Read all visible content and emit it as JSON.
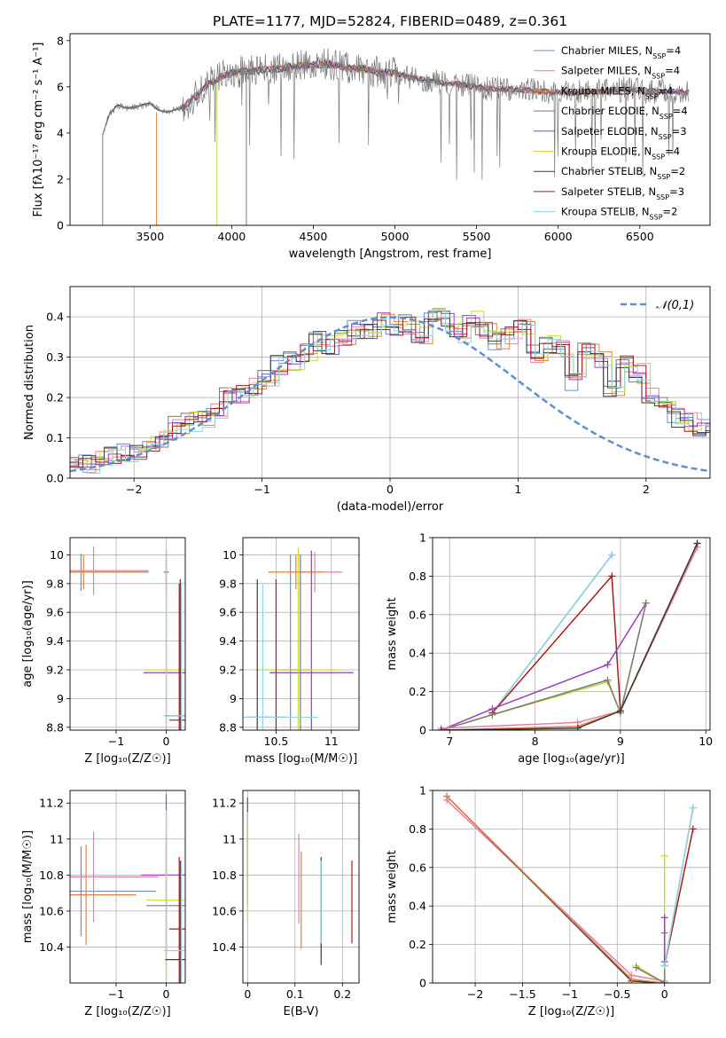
{
  "figure": {
    "title": "PLATE=1177, MJD=52824, FIBERID=0489, z=0.361"
  },
  "colors": {
    "chabrier_miles": "#6b8ed6",
    "salpeter_miles": "#e57fae",
    "kroupa_miles": "#e8803a",
    "chabrier_elodie": "#7a7a7a",
    "salpeter_elodie": "#9b3fb8",
    "kroupa_elodie": "#c8dc3a",
    "chabrier_stelib": "#3c3c3c",
    "salpeter_stelib": "#b01818",
    "kroupa_stelib": "#8fd3de",
    "normal": "#5b8fd6"
  },
  "chart_data": [
    {
      "id": "spectrum",
      "type": "line",
      "xlabel": "wavelength [Angstrom, rest frame]",
      "ylabel": "Flux [fλ10⁻¹⁷ erg cm⁻² s⁻¹ A⁻¹]",
      "xlim": [
        3010,
        6930
      ],
      "ylim": [
        0,
        8.3
      ],
      "xticks": [
        3500,
        4000,
        4500,
        5000,
        5500,
        6000,
        6500
      ],
      "yticks": [
        0,
        2,
        4,
        6,
        8
      ],
      "grid": false,
      "legend_position": "right",
      "series": [
        {
          "name": "Chabrier MILES, N_SSP=4",
          "sub_label": "SSP",
          "val": "4",
          "color_key": "chabrier_miles"
        },
        {
          "name": "Salpeter MILES, N_SSP=4",
          "sub_label": "SSP",
          "val": "4",
          "color_key": "salpeter_miles"
        },
        {
          "name": "Kroupa MILES, N_SSP=4",
          "sub_label": "SSP",
          "val": "4",
          "color_key": "kroupa_miles"
        },
        {
          "name": "Chabrier ELODIE, N_SSP=4",
          "sub_label": "SSP",
          "val": "4",
          "color_key": "chabrier_elodie"
        },
        {
          "name": "Salpeter ELODIE, N_SSP=3",
          "sub_label": "SSP",
          "val": "3",
          "color_key": "salpeter_elodie"
        },
        {
          "name": "Kroupa ELODIE, N_SSP=4",
          "sub_label": "SSP",
          "val": "4",
          "color_key": "kroupa_elodie"
        },
        {
          "name": "Chabrier STELIB, N_SSP=2",
          "sub_label": "SSP",
          "val": "2",
          "color_key": "chabrier_stelib"
        },
        {
          "name": "Salpeter STELIB, N_SSP=3",
          "sub_label": "SSP",
          "val": "3",
          "color_key": "salpeter_stelib"
        },
        {
          "name": "Kroupa STELIB, N_SSP=2",
          "sub_label": "SSP",
          "val": "2",
          "color_key": "kroupa_stelib"
        }
      ],
      "continuum": {
        "x": [
          3210,
          3250,
          3300,
          3350,
          3400,
          3450,
          3500,
          3550,
          3600,
          3650,
          3700,
          3750,
          3800,
          3850,
          3900,
          3950,
          4000,
          4100,
          4200,
          4300,
          4400,
          4500,
          4600,
          4700,
          4800,
          4900,
          5000,
          5100,
          5200,
          5300,
          5400,
          5500,
          5600,
          5700,
          5800,
          5900,
          6000,
          6100,
          6200,
          6300,
          6400,
          6500,
          6600,
          6700,
          6800
        ],
        "y": [
          3.9,
          4.8,
          5.2,
          5.1,
          5.1,
          5.2,
          5.3,
          5.0,
          4.9,
          5.0,
          5.1,
          5.4,
          5.7,
          6.1,
          6.3,
          6.5,
          6.6,
          6.7,
          6.75,
          6.8,
          6.9,
          6.95,
          7.0,
          6.8,
          6.8,
          6.6,
          6.6,
          6.4,
          6.3,
          6.15,
          6.1,
          6.0,
          5.9,
          5.9,
          5.85,
          5.8,
          5.75,
          5.75,
          5.8,
          5.8,
          5.9,
          5.85,
          5.8,
          5.8,
          5.75
        ]
      },
      "data_cutoffs": [
        {
          "x": 3210,
          "y_from": 0,
          "y_to": 3.9,
          "color_key": "chabrier_elodie"
        },
        {
          "x": 3540,
          "y_from": 0,
          "y_to": 4.9,
          "color_key": "kroupa_miles"
        },
        {
          "x": 3910,
          "y_from": 0,
          "y_to": 6.2,
          "color_key": "kroupa_elodie"
        },
        {
          "x": 4090,
          "y_from": 0,
          "y_to": 6.6,
          "color_key": "chabrier_elodie"
        }
      ]
    },
    {
      "id": "residuals",
      "type": "line",
      "xlabel": "(data-model)/error",
      "ylabel": "Normed distribution",
      "xlim": [
        -2.5,
        2.5
      ],
      "ylim": [
        0,
        0.475
      ],
      "xticks": [
        -2,
        -1,
        0,
        1,
        2
      ],
      "yticks": [
        0.0,
        0.1,
        0.2,
        0.3,
        0.4
      ],
      "grid": true,
      "legend_position": "top-right",
      "normal_label": "𝒩(0,1)",
      "bin_width": 0.1,
      "base_hist": [
        0.03,
        0.035,
        0.05,
        0.06,
        0.065,
        0.07,
        0.085,
        0.1,
        0.13,
        0.14,
        0.15,
        0.17,
        0.2,
        0.21,
        0.23,
        0.25,
        0.28,
        0.29,
        0.31,
        0.34,
        0.33,
        0.35,
        0.37,
        0.36,
        0.39,
        0.37,
        0.38,
        0.35,
        0.4,
        0.39,
        0.36,
        0.39,
        0.37,
        0.34,
        0.35,
        0.38,
        0.31,
        0.33,
        0.32,
        0.24,
        0.31,
        0.29,
        0.22,
        0.28,
        0.26,
        0.2,
        0.18,
        0.15,
        0.14,
        0.13,
        0.11,
        0.09,
        0.08,
        0.07,
        0.06,
        0.05,
        0.05,
        0.045,
        0.04,
        0.03,
        0.03
      ]
    },
    {
      "id": "age_vs_Z",
      "type": "scatter",
      "xlabel": "Z [log₁₀(Z/Z☉)]",
      "ylabel": "age  [log₁₀(age/yr)]",
      "xlim": [
        -1.92,
        0.38
      ],
      "ylim": [
        8.78,
        10.12
      ],
      "xticks": [
        -1,
        0
      ],
      "yticks": [
        8.8,
        9.0,
        9.2,
        9.4,
        9.6,
        9.8,
        10.0
      ],
      "grid": true,
      "points": [
        {
          "model": "chabrier_miles",
          "x": -1.7,
          "y": 9.88,
          "xerr": 1.35,
          "yerr": 0.13
        },
        {
          "model": "salpeter_miles",
          "x": -1.45,
          "y": 9.89,
          "xerr": 1.1,
          "yerr": 0.17
        },
        {
          "model": "kroupa_miles",
          "x": -1.65,
          "y": 9.88,
          "xerr": 1.2,
          "yerr": 0.12
        },
        {
          "model": "chabrier_elodie",
          "x": 0.0,
          "y": 9.88,
          "xerr": 0.05,
          "yerr": 0.15
        },
        {
          "model": "salpeter_elodie",
          "x": 0.0,
          "y": 9.18,
          "xerr": 0.45,
          "yerr": 0.85
        },
        {
          "model": "kroupa_elodie",
          "x": 0.0,
          "y": 9.2,
          "xerr": 0.4,
          "yerr": 0.85
        },
        {
          "model": "chabrier_stelib",
          "x": 0.28,
          "y": 8.88,
          "xerr": 0.3,
          "yerr": 0.95
        },
        {
          "model": "salpeter_stelib",
          "x": 0.26,
          "y": 8.85,
          "xerr": 0.2,
          "yerr": 0.95
        },
        {
          "model": "kroupa_stelib",
          "x": 0.3,
          "y": 8.88,
          "xerr": 0.35,
          "yerr": 0.93
        }
      ]
    },
    {
      "id": "age_vs_mass",
      "type": "scatter",
      "xlabel": "mass [log₁₀(M/M☉)]",
      "ylabel": "",
      "xlim": [
        10.2,
        11.25
      ],
      "ylim": [
        8.78,
        10.12
      ],
      "xticks": [
        10.5,
        11.0
      ],
      "yticks": [
        8.8,
        9.0,
        9.2,
        9.4,
        9.6,
        9.8,
        10.0
      ],
      "grid": true,
      "points": [
        {
          "model": "chabrier_miles",
          "x": 10.63,
          "y": 9.2,
          "xerr": 0.1,
          "yerr": 0.8
        },
        {
          "model": "salpeter_miles",
          "x": 10.85,
          "y": 9.88,
          "xerr": 0.25,
          "yerr": 0.14
        },
        {
          "model": "kroupa_miles",
          "x": 10.68,
          "y": 9.88,
          "xerr": 0.25,
          "yerr": 0.12
        },
        {
          "model": "chabrier_elodie",
          "x": 10.72,
          "y": 9.2,
          "xerr": 0.1,
          "yerr": 0.8
        },
        {
          "model": "salpeter_elodie",
          "x": 10.82,
          "y": 9.18,
          "xerr": 0.38,
          "yerr": 0.85
        },
        {
          "model": "kroupa_elodie",
          "x": 10.7,
          "y": 9.2,
          "xerr": 0.4,
          "yerr": 0.85
        },
        {
          "model": "chabrier_stelib",
          "x": 10.33,
          "y": 8.87,
          "xerr": 0.1,
          "yerr": 0.96
        },
        {
          "model": "salpeter_stelib",
          "x": 10.5,
          "y": 8.87,
          "xerr": 0.1,
          "yerr": 0.96
        },
        {
          "model": "kroupa_stelib",
          "x": 10.38,
          "y": 8.87,
          "xerr": 0.5,
          "yerr": 0.93
        }
      ]
    },
    {
      "id": "weight_vs_age",
      "type": "line",
      "xlabel": "age  [log₁₀(age/yr)]",
      "ylabel": "mass weight",
      "xlim": [
        6.8,
        10.05
      ],
      "ylim": [
        0,
        1.0
      ],
      "xticks": [
        7,
        8,
        9,
        10
      ],
      "yticks": [
        0.0,
        0.2,
        0.4,
        0.6,
        0.8,
        1.0
      ],
      "grid": true,
      "series": [
        {
          "model": "chabrier_miles",
          "x": [
            7.5,
            8.9
          ],
          "y": [
            0.09,
            0.91
          ]
        },
        {
          "model": "kroupa_stelib",
          "x": [
            7.5,
            8.9
          ],
          "y": [
            0.09,
            0.91
          ]
        },
        {
          "model": "salpeter_stelib",
          "x": [
            7.5,
            8.9,
            9.0,
            9.9
          ],
          "y": [
            0.09,
            0.8,
            0.1,
            0.97
          ]
        },
        {
          "model": "salpeter_elodie",
          "x": [
            6.9,
            7.5,
            8.85,
            9.3
          ],
          "y": [
            0.0,
            0.11,
            0.34,
            0.66
          ]
        },
        {
          "model": "kroupa_elodie",
          "x": [
            6.9,
            7.5,
            8.85,
            9.0,
            9.3
          ],
          "y": [
            0.0,
            0.08,
            0.25,
            0.09,
            0.66
          ]
        },
        {
          "model": "chabrier_elodie",
          "x": [
            6.9,
            7.5,
            8.85,
            9.0,
            9.3
          ],
          "y": [
            0.0,
            0.08,
            0.26,
            0.09,
            0.66
          ]
        },
        {
          "model": "salpeter_miles",
          "x": [
            6.9,
            8.5,
            9.0,
            9.9
          ],
          "y": [
            0.01,
            0.04,
            0.1,
            0.95
          ]
        },
        {
          "model": "kroupa_miles",
          "x": [
            6.9,
            8.5,
            9.0,
            9.9
          ],
          "y": [
            0.0,
            0.02,
            0.1,
            0.97
          ]
        },
        {
          "model": "chabrier_stelib",
          "x": [
            6.9,
            8.5,
            9.0,
            9.9
          ],
          "y": [
            0.0,
            0.01,
            0.1,
            0.97
          ]
        }
      ]
    },
    {
      "id": "mass_vs_Z",
      "type": "scatter",
      "xlabel": "Z [log₁₀(Z/Z☉)]",
      "ylabel": "mass [log₁₀(M/M☉)]",
      "xlim": [
        -1.92,
        0.38
      ],
      "ylim": [
        10.2,
        11.27
      ],
      "xticks": [
        -1,
        0
      ],
      "yticks": [
        10.4,
        10.6,
        10.8,
        11.0,
        11.2
      ],
      "grid": true,
      "points": [
        {
          "model": "chabrier_miles",
          "x": -1.7,
          "y": 10.71,
          "xerr": 1.5,
          "yerr": 0.25
        },
        {
          "model": "salpeter_miles",
          "x": -1.45,
          "y": 10.79,
          "xerr": 1.3,
          "yerr": 0.25
        },
        {
          "model": "kroupa_miles",
          "x": -1.6,
          "y": 10.69,
          "xerr": 1.0,
          "yerr": 0.28
        },
        {
          "model": "chabrier_elodie",
          "x": 0.0,
          "y": 10.63,
          "xerr": 0.4,
          "yerr": 0.4
        },
        {
          "model": "salpeter_elodie",
          "x": 0.0,
          "y": 10.8,
          "xerr": 0.5,
          "yerr": 0.45
        },
        {
          "model": "kroupa_elodie",
          "x": 0.0,
          "y": 10.66,
          "xerr": 0.4,
          "yerr": 0.5
        },
        {
          "model": "chabrier_stelib",
          "x": 0.28,
          "y": 10.33,
          "xerr": 0.3,
          "yerr": 0.55
        },
        {
          "model": "salpeter_stelib",
          "x": 0.26,
          "y": 10.5,
          "xerr": 0.2,
          "yerr": 0.4
        },
        {
          "model": "kroupa_stelib",
          "x": 0.3,
          "y": 10.38,
          "xerr": 0.35,
          "yerr": 0.5
        }
      ]
    },
    {
      "id": "mass_vs_ebv",
      "type": "scatter",
      "xlabel": "E(B-V)",
      "ylabel": "",
      "xlim": [
        -0.01,
        0.235
      ],
      "ylim": [
        10.2,
        11.27
      ],
      "xticks": [
        0.0,
        0.1,
        0.2
      ],
      "yticks": [
        10.4,
        10.6,
        10.8,
        11.0,
        11.2
      ],
      "grid": true,
      "points": [
        {
          "model": "chabrier_miles",
          "x": 0.155,
          "y": 10.62,
          "xerr": 0,
          "yerr": 0.22
        },
        {
          "model": "salpeter_miles",
          "x": 0.108,
          "y": 10.78,
          "xerr": 0,
          "yerr": 0.25
        },
        {
          "model": "kroupa_miles",
          "x": 0.113,
          "y": 10.66,
          "xerr": 0,
          "yerr": 0.27
        },
        {
          "model": "chabrier_elodie",
          "x": 0.0,
          "y": 10.93,
          "xerr": 0,
          "yerr": 0.3
        },
        {
          "model": "salpeter_elodie",
          "x": 0.0,
          "y": 11.0,
          "xerr": 0,
          "yerr": 0.23
        },
        {
          "model": "kroupa_elodie",
          "x": 0.0,
          "y": 10.85,
          "xerr": 0,
          "yerr": 0.3
        },
        {
          "model": "chabrier_stelib",
          "x": 0.155,
          "y": 10.6,
          "xerr": 0,
          "yerr": 0.3
        },
        {
          "model": "salpeter_stelib",
          "x": 0.22,
          "y": 10.65,
          "xerr": 0,
          "yerr": 0.23
        },
        {
          "model": "kroupa_stelib",
          "x": 0.155,
          "y": 10.65,
          "xerr": 0,
          "yerr": 0.23
        }
      ]
    },
    {
      "id": "weight_vs_Z",
      "type": "line",
      "xlabel": "Z [log₁₀(Z/Z☉)]",
      "ylabel": "mass weight",
      "xlim": [
        -2.45,
        0.48
      ],
      "ylim": [
        0,
        1.0
      ],
      "xticks": [
        -2.0,
        -1.5,
        -1.0,
        -0.5,
        0.0
      ],
      "yticks": [
        0.0,
        0.2,
        0.4,
        0.6,
        0.8,
        1.0
      ],
      "grid": true,
      "series": [
        {
          "model": "salpeter_miles",
          "x": [
            -2.3,
            -0.35,
            0.0
          ],
          "y": [
            0.95,
            0.04,
            0.01
          ]
        },
        {
          "model": "chabrier_stelib",
          "x": [
            -2.3,
            -0.35,
            0.0
          ],
          "y": [
            0.97,
            0.01,
            0.0
          ]
        },
        {
          "model": "kroupa_miles",
          "x": [
            -2.3,
            -0.35,
            0.0
          ],
          "y": [
            0.97,
            0.02,
            0.0
          ]
        },
        {
          "model": "kroupa_elodie",
          "x": [
            -0.3,
            0.0,
            0.0
          ],
          "y": [
            0.09,
            0.0,
            0.66
          ]
        },
        {
          "model": "chabrier_elodie",
          "x": [
            -0.3,
            0.0,
            0.0
          ],
          "y": [
            0.08,
            0.0,
            0.26
          ]
        },
        {
          "model": "salpeter_elodie",
          "x": [
            0.0,
            0.0
          ],
          "y": [
            0.11,
            0.34
          ]
        },
        {
          "model": "salpeter_stelib",
          "x": [
            0.0,
            0.3
          ],
          "y": [
            0.09,
            0.8
          ]
        },
        {
          "model": "chabrier_miles",
          "x": [
            0.0,
            0.3
          ],
          "y": [
            0.09,
            0.91
          ]
        },
        {
          "model": "kroupa_stelib",
          "x": [
            0.0,
            0.3
          ],
          "y": [
            0.09,
            0.91
          ]
        }
      ]
    }
  ]
}
